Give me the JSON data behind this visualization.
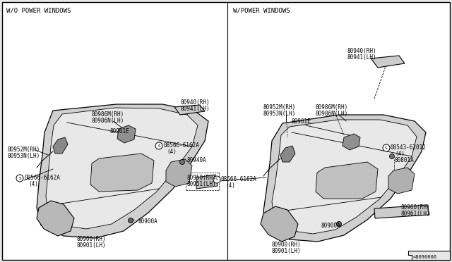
{
  "bg_color": "#e8e8e8",
  "panel_bg": "#ffffff",
  "left_title": "W/O POWER WINDOWS",
  "right_title": "W/POWER WINDOWS",
  "diagram_ref": "<8090006"
}
